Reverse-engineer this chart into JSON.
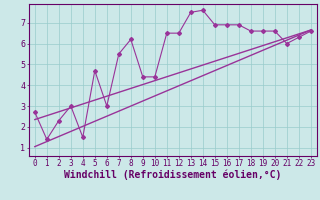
{
  "xlabel": "Windchill (Refroidissement éolien,°C)",
  "xlim": [
    -0.5,
    23.5
  ],
  "ylim": [
    0.6,
    7.9
  ],
  "yticks": [
    1,
    2,
    3,
    4,
    5,
    6,
    7
  ],
  "xticks": [
    0,
    1,
    2,
    3,
    4,
    5,
    6,
    7,
    8,
    9,
    10,
    11,
    12,
    13,
    14,
    15,
    16,
    17,
    18,
    19,
    20,
    21,
    22,
    23
  ],
  "data_x": [
    0,
    1,
    2,
    3,
    4,
    5,
    6,
    7,
    8,
    9,
    10,
    11,
    12,
    13,
    14,
    15,
    16,
    17,
    18,
    19,
    20,
    21,
    22,
    23
  ],
  "data_y": [
    2.7,
    1.4,
    2.3,
    3.0,
    1.5,
    4.7,
    3.0,
    5.5,
    6.2,
    4.4,
    4.4,
    6.5,
    6.5,
    7.5,
    7.6,
    6.9,
    6.9,
    6.9,
    6.6,
    6.6,
    6.6,
    6.0,
    6.3,
    6.6
  ],
  "line1_x": [
    0,
    23
  ],
  "line1_y": [
    1.05,
    6.65
  ],
  "line2_x": [
    0,
    23
  ],
  "line2_y": [
    2.35,
    6.65
  ],
  "line_color": "#993399",
  "bg_color": "#cce8e8",
  "grid_color": "#99cccc",
  "axis_color": "#660066",
  "tick_fontsize": 5.5,
  "xlabel_fontsize": 7.0
}
